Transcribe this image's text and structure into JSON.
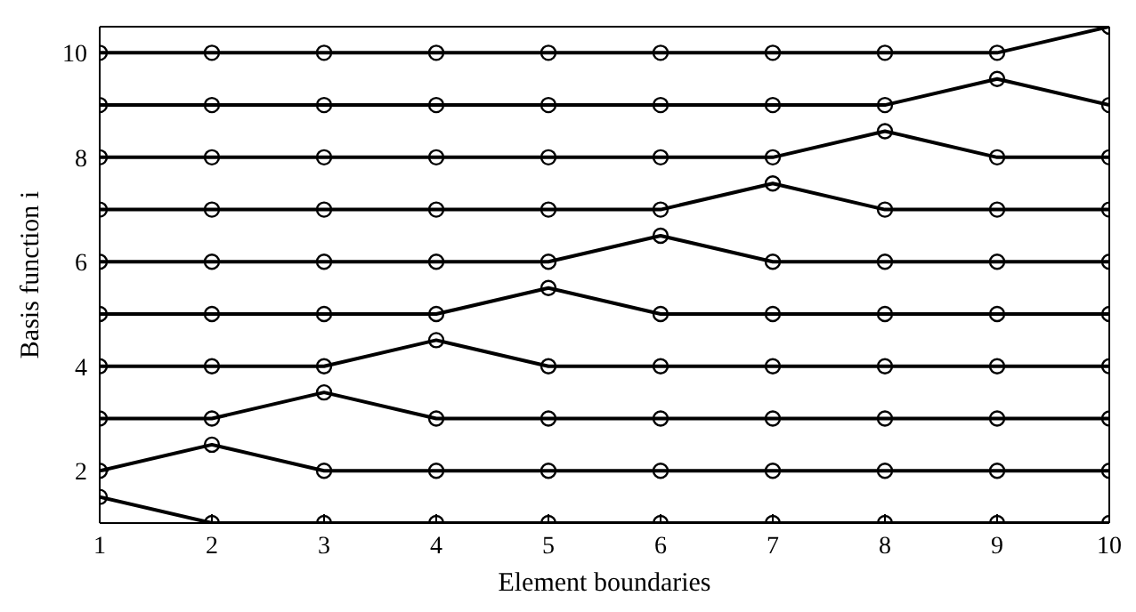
{
  "chart_data": {
    "type": "line",
    "xlabel": "Element boundaries",
    "ylabel": "Basis function i",
    "x": [
      1,
      2,
      3,
      4,
      5,
      6,
      7,
      8,
      9,
      10
    ],
    "series": [
      {
        "color": "#000000",
        "values": [
          1.5,
          1,
          1,
          1,
          1,
          1,
          1,
          1,
          1,
          1
        ]
      },
      {
        "color": "#000000",
        "values": [
          2,
          2.5,
          2,
          2,
          2,
          2,
          2,
          2,
          2,
          2
        ]
      },
      {
        "color": "#000000",
        "values": [
          3,
          3,
          3.5,
          3,
          3,
          3,
          3,
          3,
          3,
          3
        ]
      },
      {
        "color": "#000000",
        "values": [
          4,
          4,
          4,
          4.5,
          4,
          4,
          4,
          4,
          4,
          4
        ]
      },
      {
        "color": "#000000",
        "values": [
          5,
          5,
          5,
          5,
          5.5,
          5,
          5,
          5,
          5,
          5
        ]
      },
      {
        "color": "#000000",
        "values": [
          6,
          6,
          6,
          6,
          6,
          6.5,
          6,
          6,
          6,
          6
        ]
      },
      {
        "color": "#000000",
        "values": [
          7,
          7,
          7,
          7,
          7,
          7,
          7.5,
          7,
          7,
          7
        ]
      },
      {
        "color": "#000000",
        "values": [
          8,
          8,
          8,
          8,
          8,
          8,
          8,
          8.5,
          8,
          8
        ]
      },
      {
        "color": "#000000",
        "values": [
          9,
          9,
          9,
          9,
          9,
          9,
          9,
          9,
          9.5,
          9
        ]
      },
      {
        "color": "#000000",
        "values": [
          10,
          10,
          10,
          10,
          10,
          10,
          10,
          10,
          10,
          10.5
        ]
      }
    ],
    "xlim": [
      1,
      10
    ],
    "xticks": [
      1,
      2,
      3,
      4,
      5,
      6,
      7,
      8,
      9,
      10
    ],
    "ylim": [
      1,
      10.5
    ],
    "yticks": [
      2,
      4,
      6,
      8,
      10
    ],
    "grid": false,
    "marker": "circle",
    "line_style": "solid"
  }
}
